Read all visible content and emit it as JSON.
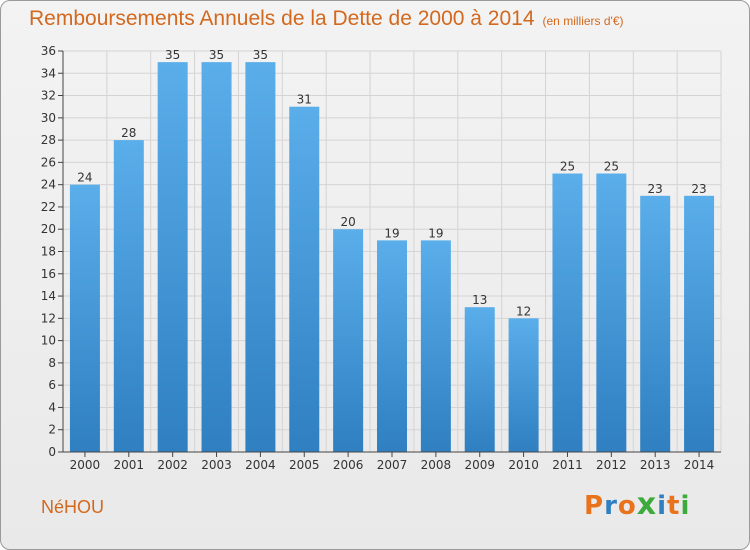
{
  "header": {
    "title": "Remboursements Annuels de la Dette de 2000 à 2014",
    "subtitle": "(en milliers d'€)"
  },
  "footer": {
    "commune": "NéHOU",
    "logo": [
      "P",
      "r",
      "o",
      "x",
      "i",
      "t",
      "i"
    ],
    "logo_colors": [
      "#e8731c",
      "#2f7fc1",
      "#e8731c",
      "#3cab3c",
      "#2f7fc1",
      "#e8731c",
      "#3cab3c"
    ]
  },
  "chart_data": {
    "type": "bar",
    "title": "Remboursements Annuels de la Dette de 2000 à 2014",
    "subtitle": "(en milliers d'€)",
    "categories": [
      "2000",
      "2001",
      "2002",
      "2003",
      "2004",
      "2005",
      "2006",
      "2007",
      "2008",
      "2009",
      "2010",
      "2011",
      "2012",
      "2013",
      "2014"
    ],
    "values": [
      24,
      28,
      35,
      35,
      35,
      31,
      20,
      19,
      19,
      13,
      12,
      25,
      25,
      23,
      23
    ],
    "ylim": [
      0,
      36
    ],
    "yticks": [
      0,
      2,
      4,
      6,
      8,
      10,
      12,
      14,
      16,
      18,
      20,
      22,
      24,
      26,
      28,
      30,
      32,
      34,
      36
    ],
    "grid": true,
    "bar_color_top": "#5aaeea",
    "bar_color_bottom": "#2f7fc1",
    "xlabel": "",
    "ylabel": ""
  }
}
